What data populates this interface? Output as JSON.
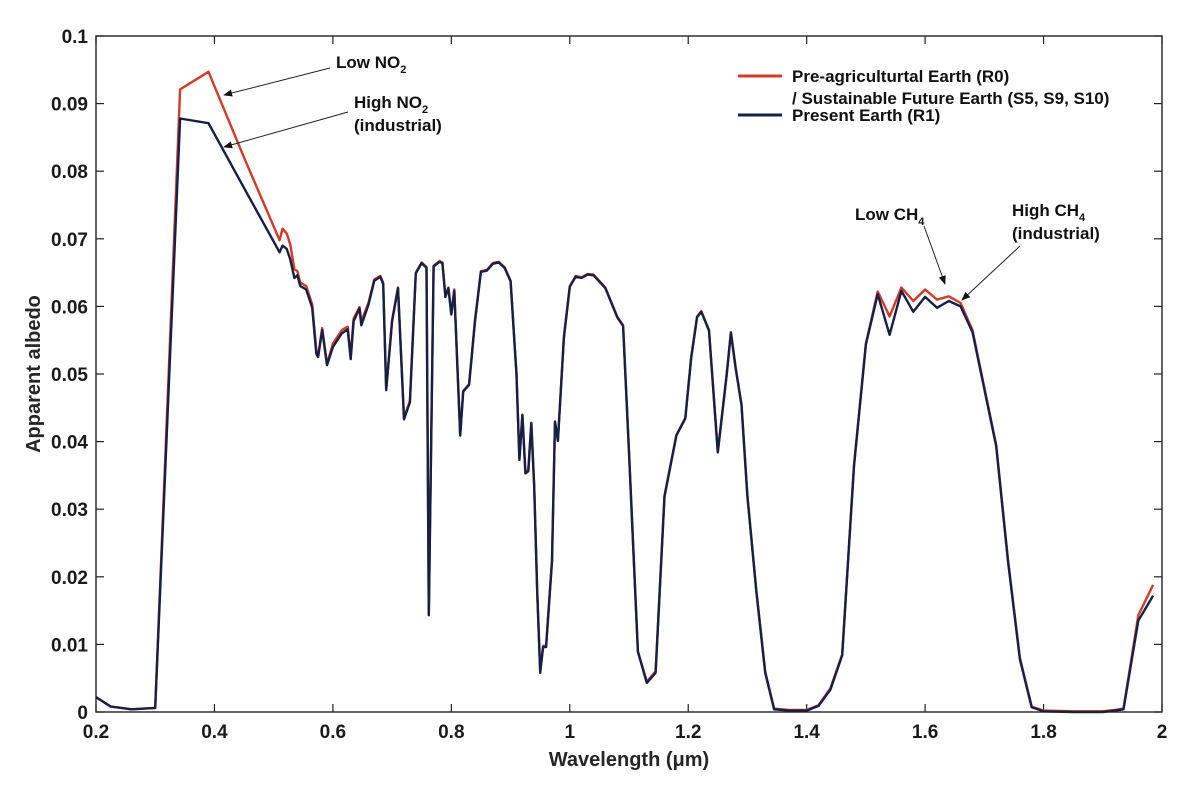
{
  "chart_data": {
    "type": "line",
    "xlabel": "Wavelength (μm)",
    "ylabel": "Apparent albedo",
    "xlim": [
      0.2,
      2.0
    ],
    "ylim": [
      0,
      0.1
    ],
    "x_ticks": [
      "0.2",
      "0.4",
      "0.6",
      "0.8",
      "1",
      "1.2",
      "1.4",
      "1.6",
      "1.8",
      "2"
    ],
    "y_ticks": [
      "0",
      "0.01",
      "0.02",
      "0.03",
      "0.04",
      "0.05",
      "0.06",
      "0.07",
      "0.08",
      "0.09",
      "0.1"
    ],
    "legend_position": "top-right",
    "legend": [
      {
        "line1": "Pre-agriculturtal Earth (R0)",
        "line2": "/ Sustainable Future Earth (S5, S9, S10)",
        "color": "#d23a2a"
      },
      {
        "line1": "Present Earth (R1)",
        "line2": "",
        "color": "#152047"
      }
    ],
    "annotations": [
      {
        "main": "Low NO",
        "sub": "2",
        "line2": ""
      },
      {
        "main": "High NO",
        "sub": "2",
        "line2": "(industrial)"
      },
      {
        "main": "Low CH",
        "sub": "4",
        "line2": ""
      },
      {
        "main": "High CH",
        "sub": "4",
        "line2": "(industrial)"
      }
    ],
    "series": [
      {
        "color": "#d23a2a",
        "points": [
          [
            0.2,
            0.0022
          ],
          [
            0.225,
            0.0008
          ],
          [
            0.26,
            0.0004
          ],
          [
            0.3,
            0.0006
          ],
          [
            0.342,
            0.0921
          ],
          [
            0.39,
            0.0947
          ],
          [
            0.45,
            0.082
          ],
          [
            0.51,
            0.0698
          ],
          [
            0.515,
            0.0715
          ],
          [
            0.522,
            0.0708
          ],
          [
            0.528,
            0.0692
          ],
          [
            0.535,
            0.0655
          ],
          [
            0.54,
            0.0652
          ],
          [
            0.545,
            0.0635
          ],
          [
            0.555,
            0.063
          ],
          [
            0.565,
            0.0603
          ],
          [
            0.572,
            0.0535
          ],
          [
            0.575,
            0.0527
          ],
          [
            0.582,
            0.0568
          ],
          [
            0.59,
            0.0515
          ],
          [
            0.6,
            0.0545
          ],
          [
            0.615,
            0.0565
          ],
          [
            0.625,
            0.057
          ],
          [
            0.63,
            0.0525
          ],
          [
            0.635,
            0.0582
          ],
          [
            0.645,
            0.0599
          ],
          [
            0.648,
            0.0578
          ],
          [
            0.66,
            0.0605
          ],
          [
            0.67,
            0.064
          ],
          [
            0.68,
            0.0645
          ],
          [
            0.685,
            0.0635
          ],
          [
            0.69,
            0.0478
          ],
          [
            0.7,
            0.058
          ],
          [
            0.71,
            0.0628
          ],
          [
            0.72,
            0.0435
          ],
          [
            0.73,
            0.046
          ],
          [
            0.74,
            0.065
          ],
          [
            0.75,
            0.0665
          ],
          [
            0.758,
            0.0658
          ],
          [
            0.762,
            0.0145
          ],
          [
            0.77,
            0.066
          ],
          [
            0.78,
            0.0667
          ],
          [
            0.785,
            0.0665
          ],
          [
            0.79,
            0.0616
          ],
          [
            0.795,
            0.0628
          ],
          [
            0.8,
            0.059
          ],
          [
            0.805,
            0.0625
          ],
          [
            0.815,
            0.041
          ],
          [
            0.82,
            0.0475
          ],
          [
            0.83,
            0.0485
          ],
          [
            0.84,
            0.058
          ],
          [
            0.85,
            0.0652
          ],
          [
            0.86,
            0.0654
          ],
          [
            0.87,
            0.0664
          ],
          [
            0.88,
            0.0666
          ],
          [
            0.89,
            0.0658
          ],
          [
            0.9,
            0.0638
          ],
          [
            0.91,
            0.05
          ],
          [
            0.915,
            0.0375
          ],
          [
            0.92,
            0.044
          ],
          [
            0.925,
            0.0355
          ],
          [
            0.93,
            0.0358
          ],
          [
            0.935,
            0.0428
          ],
          [
            0.94,
            0.0335
          ],
          [
            0.945,
            0.018
          ],
          [
            0.95,
            0.006
          ],
          [
            0.955,
            0.0098
          ],
          [
            0.96,
            0.0098
          ],
          [
            0.97,
            0.0225
          ],
          [
            0.975,
            0.043
          ],
          [
            0.98,
            0.0402
          ],
          [
            0.99,
            0.0555
          ],
          [
            1.0,
            0.063
          ],
          [
            1.01,
            0.0645
          ],
          [
            1.02,
            0.0643
          ],
          [
            1.03,
            0.0648
          ],
          [
            1.04,
            0.0647
          ],
          [
            1.06,
            0.0628
          ],
          [
            1.08,
            0.0585
          ],
          [
            1.09,
            0.0572
          ],
          [
            1.1,
            0.0385
          ],
          [
            1.115,
            0.009
          ],
          [
            1.13,
            0.0045
          ],
          [
            1.145,
            0.006
          ],
          [
            1.16,
            0.032
          ],
          [
            1.18,
            0.041
          ],
          [
            1.195,
            0.0435
          ],
          [
            1.205,
            0.0525
          ],
          [
            1.215,
            0.0585
          ],
          [
            1.222,
            0.0593
          ],
          [
            1.235,
            0.0565
          ],
          [
            1.25,
            0.0385
          ],
          [
            1.265,
            0.05
          ],
          [
            1.272,
            0.0562
          ],
          [
            1.28,
            0.051
          ],
          [
            1.29,
            0.0455
          ],
          [
            1.3,
            0.032
          ],
          [
            1.315,
            0.018
          ],
          [
            1.33,
            0.006
          ],
          [
            1.345,
            0.0005
          ],
          [
            1.37,
            0.0003
          ],
          [
            1.4,
            0.0003
          ],
          [
            1.42,
            0.001
          ],
          [
            1.44,
            0.0035
          ],
          [
            1.46,
            0.0085
          ],
          [
            1.48,
            0.0365
          ],
          [
            1.5,
            0.0545
          ],
          [
            1.52,
            0.0622
          ],
          [
            1.54,
            0.0585
          ],
          [
            1.56,
            0.0628
          ],
          [
            1.58,
            0.0608
          ],
          [
            1.6,
            0.0625
          ],
          [
            1.62,
            0.061
          ],
          [
            1.64,
            0.0615
          ],
          [
            1.66,
            0.0605
          ],
          [
            1.68,
            0.0565
          ],
          [
            1.7,
            0.048
          ],
          [
            1.72,
            0.0395
          ],
          [
            1.74,
            0.0225
          ],
          [
            1.76,
            0.008
          ],
          [
            1.78,
            0.0008
          ],
          [
            1.8,
            0.0002
          ],
          [
            1.85,
            0.0001
          ],
          [
            1.9,
            0.0001
          ],
          [
            1.92,
            0.0003
          ],
          [
            1.935,
            0.0005
          ],
          [
            1.96,
            0.0143
          ],
          [
            1.985,
            0.0188
          ]
        ]
      },
      {
        "color": "#152047",
        "points": [
          [
            0.2,
            0.0022
          ],
          [
            0.225,
            0.0008
          ],
          [
            0.26,
            0.0004
          ],
          [
            0.3,
            0.0006
          ],
          [
            0.342,
            0.0878
          ],
          [
            0.39,
            0.0871
          ],
          [
            0.45,
            0.0775
          ],
          [
            0.51,
            0.068
          ],
          [
            0.515,
            0.069
          ],
          [
            0.522,
            0.0685
          ],
          [
            0.528,
            0.067
          ],
          [
            0.535,
            0.0642
          ],
          [
            0.54,
            0.0646
          ],
          [
            0.545,
            0.063
          ],
          [
            0.555,
            0.0625
          ],
          [
            0.565,
            0.0598
          ],
          [
            0.572,
            0.053
          ],
          [
            0.575,
            0.0525
          ],
          [
            0.582,
            0.0565
          ],
          [
            0.59,
            0.0513
          ],
          [
            0.6,
            0.054
          ],
          [
            0.615,
            0.056
          ],
          [
            0.625,
            0.0566
          ],
          [
            0.63,
            0.0522
          ],
          [
            0.635,
            0.0578
          ],
          [
            0.645,
            0.0597
          ],
          [
            0.648,
            0.0572
          ],
          [
            0.66,
            0.0602
          ],
          [
            0.67,
            0.0638
          ],
          [
            0.68,
            0.0644
          ],
          [
            0.685,
            0.0633
          ],
          [
            0.69,
            0.0476
          ],
          [
            0.7,
            0.0578
          ],
          [
            0.71,
            0.0627
          ],
          [
            0.72,
            0.0433
          ],
          [
            0.73,
            0.0458
          ],
          [
            0.74,
            0.0649
          ],
          [
            0.75,
            0.0664
          ],
          [
            0.758,
            0.0657
          ],
          [
            0.762,
            0.0143
          ],
          [
            0.77,
            0.0659
          ],
          [
            0.78,
            0.0666
          ],
          [
            0.785,
            0.0664
          ],
          [
            0.79,
            0.0614
          ],
          [
            0.795,
            0.0627
          ],
          [
            0.8,
            0.0588
          ],
          [
            0.805,
            0.0623
          ],
          [
            0.815,
            0.0409
          ],
          [
            0.82,
            0.0474
          ],
          [
            0.83,
            0.0484
          ],
          [
            0.84,
            0.0578
          ],
          [
            0.85,
            0.0651
          ],
          [
            0.86,
            0.0653
          ],
          [
            0.87,
            0.0663
          ],
          [
            0.88,
            0.0665
          ],
          [
            0.89,
            0.0657
          ],
          [
            0.9,
            0.0637
          ],
          [
            0.91,
            0.0499
          ],
          [
            0.915,
            0.0373
          ],
          [
            0.92,
            0.0439
          ],
          [
            0.925,
            0.0353
          ],
          [
            0.93,
            0.0356
          ],
          [
            0.935,
            0.0427
          ],
          [
            0.94,
            0.0333
          ],
          [
            0.945,
            0.0178
          ],
          [
            0.95,
            0.0058
          ],
          [
            0.955,
            0.0096
          ],
          [
            0.96,
            0.0096
          ],
          [
            0.97,
            0.0223
          ],
          [
            0.975,
            0.0429
          ],
          [
            0.98,
            0.0401
          ],
          [
            0.99,
            0.0554
          ],
          [
            1.0,
            0.0629
          ],
          [
            1.01,
            0.0644
          ],
          [
            1.02,
            0.0642
          ],
          [
            1.03,
            0.0647
          ],
          [
            1.04,
            0.0646
          ],
          [
            1.06,
            0.0627
          ],
          [
            1.08,
            0.0584
          ],
          [
            1.09,
            0.0571
          ],
          [
            1.1,
            0.0384
          ],
          [
            1.115,
            0.0089
          ],
          [
            1.13,
            0.0043
          ],
          [
            1.145,
            0.0058
          ],
          [
            1.16,
            0.0319
          ],
          [
            1.18,
            0.0409
          ],
          [
            1.195,
            0.0434
          ],
          [
            1.205,
            0.0524
          ],
          [
            1.215,
            0.0584
          ],
          [
            1.222,
            0.0592
          ],
          [
            1.235,
            0.0564
          ],
          [
            1.25,
            0.0384
          ],
          [
            1.265,
            0.0499
          ],
          [
            1.272,
            0.0561
          ],
          [
            1.28,
            0.0509
          ],
          [
            1.29,
            0.0454
          ],
          [
            1.3,
            0.0319
          ],
          [
            1.315,
            0.0179
          ],
          [
            1.33,
            0.0058
          ],
          [
            1.345,
            0.0004
          ],
          [
            1.37,
            0.0002
          ],
          [
            1.4,
            0.0002
          ],
          [
            1.42,
            0.0009
          ],
          [
            1.44,
            0.0033
          ],
          [
            1.46,
            0.0084
          ],
          [
            1.48,
            0.0364
          ],
          [
            1.5,
            0.0544
          ],
          [
            1.52,
            0.0618
          ],
          [
            1.54,
            0.0558
          ],
          [
            1.56,
            0.0623
          ],
          [
            1.58,
            0.0592
          ],
          [
            1.6,
            0.0614
          ],
          [
            1.62,
            0.0598
          ],
          [
            1.64,
            0.0608
          ],
          [
            1.66,
            0.06
          ],
          [
            1.68,
            0.0562
          ],
          [
            1.7,
            0.0478
          ],
          [
            1.72,
            0.0393
          ],
          [
            1.74,
            0.0223
          ],
          [
            1.76,
            0.0078
          ],
          [
            1.78,
            0.0007
          ],
          [
            1.8,
            0.0001
          ],
          [
            1.85,
            0.0
          ],
          [
            1.9,
            0.0
          ],
          [
            1.92,
            0.0002
          ],
          [
            1.935,
            0.0004
          ],
          [
            1.96,
            0.0135
          ],
          [
            1.985,
            0.0172
          ]
        ]
      }
    ]
  }
}
